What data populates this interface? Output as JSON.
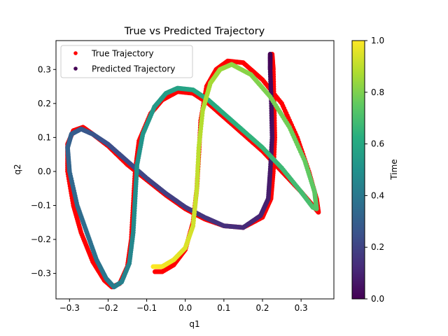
{
  "chart_data": {
    "type": "scatter",
    "title": "True vs Predicted Trajectory",
    "xlabel": "q1",
    "ylabel": "q2",
    "xlim": [
      -0.335,
      0.385
    ],
    "ylim": [
      -0.375,
      0.385
    ],
    "xticks": [
      -0.3,
      -0.2,
      -0.1,
      0.0,
      0.1,
      0.2,
      0.3
    ],
    "xtick_labels": [
      "−0.3",
      "−0.2",
      "−0.1",
      "0.0",
      "0.1",
      "0.2",
      "0.3"
    ],
    "yticks": [
      -0.3,
      -0.2,
      -0.1,
      0.0,
      0.1,
      0.2,
      0.3
    ],
    "ytick_labels": [
      "−0.3",
      "−0.2",
      "−0.1",
      "0.0",
      "0.1",
      "0.2",
      "0.3"
    ],
    "grid": false,
    "legend_position": "top-left",
    "series": [
      {
        "name": "True Trajectory",
        "color": "#ff0000",
        "points": [
          [
            0.225,
            0.345
          ],
          [
            0.228,
            0.3
          ],
          [
            0.23,
            0.2
          ],
          [
            0.232,
            0.1
          ],
          [
            0.228,
            0.0
          ],
          [
            0.222,
            -0.08
          ],
          [
            0.2,
            -0.135
          ],
          [
            0.15,
            -0.165
          ],
          [
            0.1,
            -0.16
          ],
          [
            0.05,
            -0.14
          ],
          [
            0.0,
            -0.11
          ],
          [
            -0.05,
            -0.07
          ],
          [
            -0.1,
            -0.025
          ],
          [
            -0.15,
            0.02
          ],
          [
            -0.2,
            0.075
          ],
          [
            -0.24,
            0.11
          ],
          [
            -0.265,
            0.13
          ],
          [
            -0.29,
            0.12
          ],
          [
            -0.305,
            0.08
          ],
          [
            -0.305,
            0.0
          ],
          [
            -0.29,
            -0.1
          ],
          [
            -0.27,
            -0.18
          ],
          [
            -0.24,
            -0.265
          ],
          [
            -0.21,
            -0.32
          ],
          [
            -0.19,
            -0.34
          ],
          [
            -0.17,
            -0.33
          ],
          [
            -0.15,
            -0.28
          ],
          [
            -0.14,
            -0.2
          ],
          [
            -0.135,
            -0.1
          ],
          [
            -0.13,
            0.0
          ],
          [
            -0.12,
            0.09
          ],
          [
            -0.09,
            0.17
          ],
          [
            -0.06,
            0.21
          ],
          [
            -0.02,
            0.235
          ],
          [
            0.02,
            0.23
          ],
          [
            0.06,
            0.2
          ],
          [
            0.1,
            0.16
          ],
          [
            0.15,
            0.11
          ],
          [
            0.2,
            0.06
          ],
          [
            0.25,
            0.0
          ],
          [
            0.3,
            -0.06
          ],
          [
            0.33,
            -0.1
          ],
          [
            0.345,
            -0.12
          ],
          [
            0.34,
            -0.08
          ],
          [
            0.32,
            0.0
          ],
          [
            0.29,
            0.1
          ],
          [
            0.25,
            0.2
          ],
          [
            0.2,
            0.27
          ],
          [
            0.15,
            0.32
          ],
          [
            0.11,
            0.325
          ],
          [
            0.08,
            0.3
          ],
          [
            0.055,
            0.25
          ],
          [
            0.04,
            0.15
          ],
          [
            0.035,
            0.05
          ],
          [
            0.03,
            -0.05
          ],
          [
            0.02,
            -0.15
          ],
          [
            0.0,
            -0.23
          ],
          [
            -0.03,
            -0.275
          ],
          [
            -0.06,
            -0.295
          ],
          [
            -0.08,
            -0.295
          ]
        ]
      },
      {
        "name": "Predicted Trajectory",
        "color": "#440154",
        "colormap": "viridis",
        "points": [
          [
            0.22,
            0.345
          ],
          [
            0.22,
            0.3
          ],
          [
            0.223,
            0.2
          ],
          [
            0.225,
            0.1
          ],
          [
            0.22,
            0.0
          ],
          [
            0.215,
            -0.08
          ],
          [
            0.195,
            -0.13
          ],
          [
            0.15,
            -0.165
          ],
          [
            0.1,
            -0.16
          ],
          [
            0.05,
            -0.135
          ],
          [
            0.0,
            -0.105
          ],
          [
            -0.05,
            -0.065
          ],
          [
            -0.1,
            -0.02
          ],
          [
            -0.15,
            0.03
          ],
          [
            -0.2,
            0.08
          ],
          [
            -0.24,
            0.11
          ],
          [
            -0.27,
            0.125
          ],
          [
            -0.295,
            0.11
          ],
          [
            -0.305,
            0.07
          ],
          [
            -0.3,
            0.0
          ],
          [
            -0.28,
            -0.1
          ],
          [
            -0.255,
            -0.18
          ],
          [
            -0.23,
            -0.26
          ],
          [
            -0.205,
            -0.315
          ],
          [
            -0.185,
            -0.34
          ],
          [
            -0.165,
            -0.325
          ],
          [
            -0.145,
            -0.27
          ],
          [
            -0.135,
            -0.18
          ],
          [
            -0.13,
            -0.08
          ],
          [
            -0.125,
            0.02
          ],
          [
            -0.11,
            0.11
          ],
          [
            -0.08,
            0.19
          ],
          [
            -0.05,
            0.23
          ],
          [
            -0.02,
            0.245
          ],
          [
            0.02,
            0.24
          ],
          [
            0.06,
            0.21
          ],
          [
            0.1,
            0.17
          ],
          [
            0.15,
            0.12
          ],
          [
            0.2,
            0.07
          ],
          [
            0.25,
            0.01
          ],
          [
            0.3,
            -0.06
          ],
          [
            0.33,
            -0.105
          ],
          [
            0.34,
            -0.11
          ],
          [
            0.335,
            -0.06
          ],
          [
            0.31,
            0.03
          ],
          [
            0.27,
            0.13
          ],
          [
            0.22,
            0.22
          ],
          [
            0.17,
            0.285
          ],
          [
            0.12,
            0.315
          ],
          [
            0.09,
            0.3
          ],
          [
            0.065,
            0.26
          ],
          [
            0.045,
            0.18
          ],
          [
            0.035,
            0.07
          ],
          [
            0.03,
            -0.05
          ],
          [
            0.02,
            -0.16
          ],
          [
            0.0,
            -0.225
          ],
          [
            -0.03,
            -0.26
          ],
          [
            -0.06,
            -0.28
          ],
          [
            -0.085,
            -0.28
          ]
        ]
      }
    ],
    "colorbar": {
      "label": "Time",
      "min": 0.0,
      "max": 1.0,
      "ticks": [
        0.0,
        0.2,
        0.4,
        0.6,
        0.8,
        1.0
      ],
      "tick_labels": [
        "0.0",
        "0.2",
        "0.4",
        "0.6",
        "0.8",
        "1.0"
      ],
      "colormap": "viridis"
    }
  }
}
